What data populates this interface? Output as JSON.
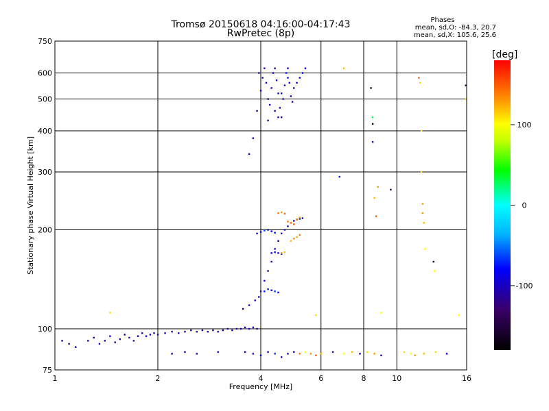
{
  "chart_data": {
    "type": "scatter",
    "title": "Tromsø 20150618 04:16:00-04:17:43",
    "subtitle": "RwPretec (8p)",
    "xlabel": "Frequency [MHz]",
    "ylabel": "Stationary phase Virtual Height [km]",
    "x_scale": "log",
    "y_scale": "log",
    "xlim": [
      1,
      16
    ],
    "ylim": [
      75,
      750
    ],
    "x_ticks": [
      "1",
      "2",
      "4",
      "6",
      "8",
      "10",
      "16"
    ],
    "y_ticks": [
      "75",
      "100",
      "200",
      "300",
      "400",
      "500",
      "600",
      "750"
    ],
    "grid": true,
    "phases_box": {
      "title": "Phases",
      "line_o": "mean, sd,O: -84.3, 20.7",
      "line_x": "mean, sd,X: 105.6, 25.6"
    },
    "colorbar": {
      "label": "[deg]",
      "range": [
        -180,
        180
      ],
      "ticks": [
        "100",
        "0",
        "-100"
      ],
      "tick_values": [
        100,
        0,
        -100
      ]
    },
    "traces": [
      {
        "name": "",
        "points": [
          [
            1.05,
            92,
            -110
          ],
          [
            1.1,
            90,
            -115
          ],
          [
            1.15,
            88,
            -100
          ],
          [
            1.25,
            92,
            -110
          ],
          [
            1.3,
            94,
            -105
          ],
          [
            1.35,
            90,
            -95
          ],
          [
            1.4,
            92,
            -110
          ],
          [
            1.45,
            95,
            -100
          ],
          [
            1.5,
            91,
            -115
          ],
          [
            1.55,
            93,
            -105
          ],
          [
            1.6,
            96,
            -110
          ],
          [
            1.65,
            94,
            -100
          ],
          [
            1.7,
            92,
            -110
          ],
          [
            1.75,
            95,
            -105
          ],
          [
            1.8,
            97,
            -100
          ],
          [
            1.85,
            95,
            -110
          ],
          [
            1.9,
            96,
            -95
          ],
          [
            1.95,
            97,
            -105
          ],
          [
            2.0,
            96,
            -110
          ],
          [
            2.1,
            97,
            -100
          ],
          [
            2.2,
            98,
            -105
          ],
          [
            2.3,
            97,
            -95
          ],
          [
            2.4,
            98,
            -110
          ],
          [
            2.5,
            99,
            -100
          ],
          [
            2.6,
            98,
            -105
          ],
          [
            2.7,
            99,
            -110
          ],
          [
            2.8,
            98,
            -95
          ],
          [
            2.9,
            99,
            -100
          ],
          [
            3.0,
            98,
            -110
          ],
          [
            3.1,
            99,
            -105
          ],
          [
            3.2,
            100,
            -110
          ],
          [
            3.3,
            99,
            -100
          ],
          [
            3.4,
            100,
            -95
          ],
          [
            3.5,
            100,
            -105
          ],
          [
            3.6,
            101,
            -110
          ],
          [
            3.7,
            100,
            -100
          ],
          [
            3.8,
            101,
            -105
          ],
          [
            3.9,
            100,
            -110
          ]
        ]
      },
      {
        "name": "",
        "points": [
          [
            3.55,
            115,
            -110
          ],
          [
            3.7,
            118,
            -100
          ],
          [
            3.85,
            122,
            -105
          ],
          [
            3.95,
            125,
            -115
          ],
          [
            4.0,
            130,
            -110
          ],
          [
            4.1,
            140,
            -100
          ],
          [
            4.2,
            150,
            -105
          ],
          [
            4.3,
            160,
            -110
          ],
          [
            4.4,
            175,
            -100
          ],
          [
            4.5,
            185,
            -105
          ],
          [
            4.6,
            195,
            -95
          ],
          [
            4.7,
            200,
            -90
          ],
          [
            4.8,
            205,
            -100
          ],
          [
            4.9,
            210,
            -110
          ],
          [
            5.0,
            213,
            -105
          ],
          [
            5.1,
            215,
            -100
          ],
          [
            5.2,
            216,
            -110
          ],
          [
            5.3,
            217,
            -105
          ]
        ]
      },
      {
        "name": "",
        "points": [
          [
            3.9,
            195,
            -80
          ],
          [
            4.0,
            197,
            -75
          ],
          [
            4.1,
            199,
            -70
          ],
          [
            4.2,
            200,
            -85
          ],
          [
            4.3,
            198,
            -78
          ],
          [
            4.4,
            196,
            -82
          ],
          [
            4.1,
            130,
            -80
          ],
          [
            4.2,
            132,
            -75
          ],
          [
            4.3,
            131,
            -85
          ],
          [
            4.4,
            130,
            -70
          ],
          [
            4.5,
            129,
            -78
          ],
          [
            4.3,
            170,
            -90
          ],
          [
            4.4,
            171,
            -85
          ],
          [
            4.5,
            170,
            -95
          ],
          [
            4.6,
            169,
            -88
          ]
        ]
      },
      {
        "name": "",
        "points": [
          [
            4.5,
            225,
            140
          ],
          [
            4.6,
            226,
            130
          ],
          [
            4.7,
            224,
            150
          ],
          [
            4.8,
            212,
            145
          ],
          [
            4.9,
            210,
            135
          ],
          [
            5.0,
            208,
            150
          ],
          [
            5.1,
            215,
            140
          ],
          [
            5.2,
            218,
            130
          ],
          [
            4.9,
            185,
            120
          ],
          [
            5.0,
            188,
            135
          ],
          [
            5.1,
            190,
            125
          ],
          [
            5.2,
            193,
            140
          ],
          [
            4.6,
            170,
            130
          ],
          [
            4.7,
            171,
            120
          ]
        ]
      },
      {
        "name": "",
        "points": [
          [
            4.0,
            530,
            -100
          ],
          [
            4.05,
            580,
            -110
          ],
          [
            4.1,
            620,
            -105
          ],
          [
            4.15,
            560,
            -95
          ],
          [
            4.2,
            500,
            -110
          ],
          [
            4.25,
            480,
            -100
          ],
          [
            4.3,
            540,
            -105
          ],
          [
            4.35,
            600,
            -90
          ],
          [
            4.4,
            620,
            -110
          ],
          [
            4.45,
            570,
            -100
          ],
          [
            4.5,
            520,
            -95
          ],
          [
            4.55,
            470,
            -105
          ],
          [
            4.6,
            440,
            -110
          ],
          [
            4.65,
            500,
            -100
          ],
          [
            4.7,
            550,
            -95
          ],
          [
            4.75,
            600,
            -85
          ],
          [
            4.8,
            620,
            -100
          ],
          [
            4.85,
            560,
            -90
          ],
          [
            4.9,
            510,
            -105
          ],
          [
            4.95,
            490,
            -95
          ],
          [
            5.0,
            540,
            -100
          ],
          [
            5.1,
            560,
            -90
          ],
          [
            5.2,
            580,
            -85
          ],
          [
            5.3,
            600,
            -80
          ],
          [
            5.4,
            620,
            -85
          ],
          [
            4.4,
            460,
            -105
          ],
          [
            4.5,
            440,
            -110
          ],
          [
            4.2,
            430,
            -100
          ],
          [
            4.6,
            520,
            -80
          ],
          [
            4.8,
            580,
            -75
          ]
        ]
      },
      {
        "name": "",
        "points": [
          [
            3.7,
            340,
            -110
          ],
          [
            3.8,
            380,
            -105
          ],
          [
            3.9,
            460,
            -100
          ],
          [
            3.95,
            600,
            -110
          ],
          [
            1.45,
            112,
            110
          ],
          [
            5.8,
            110,
            110
          ],
          [
            6.8,
            290,
            -80
          ],
          [
            7.0,
            620,
            120
          ],
          [
            8.4,
            540,
            -160
          ],
          [
            8.5,
            420,
            -170
          ],
          [
            8.5,
            440,
            30
          ],
          [
            8.5,
            370,
            -110
          ],
          [
            8.6,
            250,
            120
          ],
          [
            8.7,
            220,
            150
          ],
          [
            8.8,
            270,
            130
          ],
          [
            9.0,
            112,
            100
          ],
          [
            9.6,
            265,
            -140
          ],
          [
            11.6,
            580,
            150
          ],
          [
            11.7,
            560,
            110
          ],
          [
            11.8,
            400,
            100
          ],
          [
            11.8,
            300,
            110
          ],
          [
            11.9,
            240,
            130
          ],
          [
            11.9,
            225,
            130
          ],
          [
            12.0,
            210,
            120
          ],
          [
            12.1,
            175,
            100
          ],
          [
            12.8,
            160,
            -160
          ],
          [
            12.9,
            150,
            100
          ],
          [
            15.9,
            550,
            -150
          ],
          [
            15.9,
            500,
            120
          ],
          [
            15.2,
            110,
            100
          ]
        ]
      },
      {
        "name": "",
        "points": [
          [
            3.6,
            85,
            -100
          ],
          [
            3.8,
            84,
            -110
          ],
          [
            4.0,
            83,
            -80
          ],
          [
            4.2,
            85,
            -95
          ],
          [
            4.4,
            84,
            -70
          ],
          [
            4.6,
            82,
            -100
          ],
          [
            4.8,
            84,
            -110
          ],
          [
            5.0,
            85,
            -105
          ],
          [
            5.2,
            84,
            140
          ],
          [
            5.4,
            85,
            100
          ],
          [
            5.6,
            84,
            130
          ],
          [
            5.8,
            83,
            150
          ],
          [
            6.0,
            84,
            120
          ],
          [
            6.5,
            85,
            -110
          ],
          [
            7.0,
            84,
            100
          ],
          [
            7.4,
            85,
            120
          ],
          [
            7.8,
            84,
            -100
          ],
          [
            8.2,
            85,
            110
          ],
          [
            8.6,
            84,
            130
          ],
          [
            9.0,
            83,
            -110
          ],
          [
            10.5,
            85,
            110
          ],
          [
            11.0,
            84,
            100
          ],
          [
            11.3,
            83,
            130
          ],
          [
            12.0,
            84,
            120
          ],
          [
            13.0,
            85,
            110
          ],
          [
            14.0,
            84,
            -90
          ],
          [
            2.2,
            84,
            -110
          ],
          [
            2.4,
            85,
            -100
          ],
          [
            2.6,
            84,
            -105
          ],
          [
            3.0,
            85,
            -110
          ]
        ]
      }
    ]
  }
}
